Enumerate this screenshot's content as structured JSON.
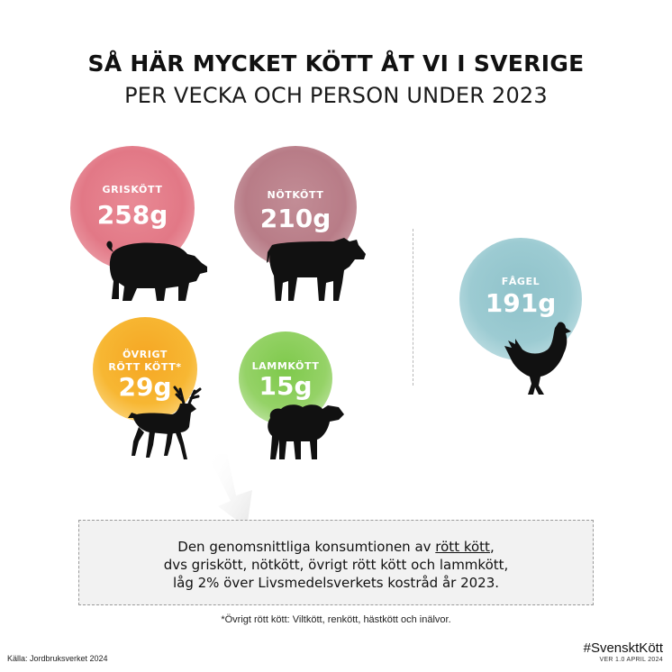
{
  "title": "SÅ HÄR MYCKET KÖTT ÅT VI I SVERIGE",
  "subtitle": "PER VECKA OCH PERSON UNDER 2023",
  "categories": {
    "griskott": {
      "label": "GRISKÖTT",
      "value": "258g",
      "color": "#e27886"
    },
    "notkott": {
      "label": "NÖTKÖTT",
      "value": "210g",
      "color": "#b87c87"
    },
    "ovrigt": {
      "label_line1": "ÖVRIGT",
      "label_line2": "RÖTT KÖTT*",
      "value": "29g",
      "color": "#f7b733"
    },
    "lammkott": {
      "label": "LAMMKÖTT",
      "value": "15g",
      "color": "#95d267"
    },
    "fagel": {
      "label": "FÅGEL",
      "value": "191g",
      "color": "#9ccbd2"
    }
  },
  "infobox": {
    "line1_prefix": "Den genomsnittliga konsumtionen av ",
    "line1_underlined": "rött kött",
    "line1_suffix": ",",
    "line2": "dvs griskött, nötkött, övrigt rött kött och lammkött,",
    "line3": "låg 2% över Livsmedelsverkets kostråd år 2023."
  },
  "footnote": "*Övrigt rött kött: Viltkött, renkött, hästkött och inälvor.",
  "source": "Källa: Jordbruksverket 2024",
  "hashtag": "#SvensktKött",
  "version": "VER 1.0 APRIL 2024",
  "icons": [
    "pig-icon",
    "cow-icon",
    "deer-icon",
    "sheep-icon",
    "chicken-icon",
    "arrow-icon"
  ]
}
